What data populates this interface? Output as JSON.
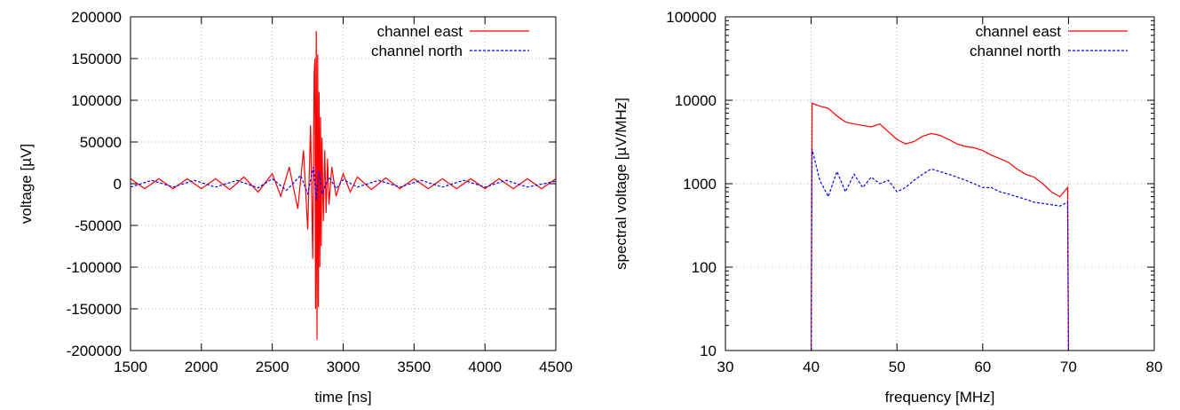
{
  "chart_data": [
    {
      "type": "line",
      "xlabel": "time [ns]",
      "ylabel": "voltage [µV]",
      "xlim": [
        1500,
        4500
      ],
      "ylim": [
        -200000,
        200000
      ],
      "x_ticks": [
        "1500",
        "2000",
        "2500",
        "3000",
        "3500",
        "4000",
        "4500"
      ],
      "x_tick_values": [
        1500,
        2000,
        2500,
        3000,
        3500,
        4000,
        4500
      ],
      "y_ticks": [
        "-200000",
        "-150000",
        "-100000",
        "-50000",
        "0",
        "50000",
        "100000",
        "150000",
        "200000"
      ],
      "y_tick_values": [
        -200000,
        -150000,
        -100000,
        -50000,
        0,
        50000,
        100000,
        150000,
        200000
      ],
      "y_scale": "linear",
      "grid": true,
      "legend": "top-right",
      "series": [
        {
          "name": "channel east",
          "color": "#ff0000",
          "style": "solid",
          "x": [
            1500,
            1600,
            1700,
            1800,
            1900,
            2000,
            2100,
            2200,
            2300,
            2400,
            2500,
            2560,
            2620,
            2680,
            2720,
            2750,
            2770,
            2785,
            2795,
            2800,
            2805,
            2810,
            2815,
            2820,
            2825,
            2830,
            2835,
            2840,
            2845,
            2850,
            2860,
            2870,
            2880,
            2890,
            2900,
            2920,
            2950,
            3000,
            3050,
            3100,
            3200,
            3300,
            3400,
            3500,
            3600,
            3700,
            3800,
            3900,
            4000,
            4100,
            4200,
            4300,
            4400,
            4500
          ],
          "values": [
            6000,
            -6000,
            6000,
            -6000,
            6000,
            -6000,
            6000,
            -7000,
            8000,
            -10000,
            12000,
            -15000,
            20000,
            -30000,
            40000,
            -55000,
            70000,
            -90000,
            130000,
            150000,
            -150000,
            183000,
            -187000,
            155000,
            -148000,
            110000,
            -100000,
            80000,
            -75000,
            55000,
            -45000,
            40000,
            -35000,
            30000,
            -25000,
            20000,
            -15000,
            12000,
            -10000,
            8000,
            -7000,
            7000,
            -6000,
            6000,
            -6000,
            6000,
            -6000,
            6000,
            -6000,
            6000,
            -6000,
            6000,
            -6000,
            6000
          ]
        },
        {
          "name": "channel north",
          "color": "#0000ff",
          "style": "dashed",
          "x": [
            1500,
            1650,
            1800,
            1950,
            2100,
            2250,
            2400,
            2500,
            2600,
            2700,
            2750,
            2790,
            2810,
            2830,
            2850,
            2900,
            2950,
            3000,
            3100,
            3250,
            3400,
            3550,
            3700,
            3850,
            4000,
            4150,
            4300,
            4500
          ],
          "values": [
            -4000,
            4000,
            -4000,
            4000,
            -4000,
            4000,
            -5000,
            6000,
            -8000,
            10000,
            -12000,
            20000,
            -20000,
            15000,
            -12000,
            8000,
            -6000,
            5000,
            -4000,
            4000,
            -4000,
            4000,
            -4000,
            4000,
            -4000,
            4000,
            -4000,
            3000
          ]
        }
      ]
    },
    {
      "type": "line",
      "xlabel": "frequency [MHz]",
      "ylabel": "spectral voltage [µV/MHz]",
      "xlim": [
        30,
        80
      ],
      "ylim": [
        10,
        100000
      ],
      "x_ticks": [
        "30",
        "40",
        "50",
        "60",
        "70",
        "80"
      ],
      "x_tick_values": [
        30,
        40,
        50,
        60,
        70,
        80
      ],
      "y_ticks": [
        "10",
        "100",
        "1000",
        "10000",
        "100000"
      ],
      "y_tick_values": [
        10,
        100,
        1000,
        10000,
        100000
      ],
      "y_scale": "log",
      "grid": true,
      "legend": "top-right",
      "series": [
        {
          "name": "channel east",
          "color": "#ff0000",
          "style": "solid",
          "x": [
            40,
            40.1,
            41,
            42,
            43,
            44,
            45,
            46,
            47,
            48,
            49,
            50,
            51,
            52,
            53,
            54,
            55,
            56,
            57,
            58,
            59,
            60,
            61,
            62,
            63,
            64,
            65,
            66,
            67,
            68,
            69,
            69.9,
            70
          ],
          "values": [
            10,
            9200,
            8500,
            8000,
            6500,
            5500,
            5200,
            5000,
            4800,
            5200,
            4200,
            3400,
            3000,
            3200,
            3700,
            4000,
            3800,
            3400,
            3000,
            2800,
            2700,
            2500,
            2200,
            2000,
            1800,
            1500,
            1300,
            1200,
            1000,
            800,
            700,
            900,
            10
          ]
        },
        {
          "name": "channel north",
          "color": "#0000ff",
          "style": "dashed",
          "x": [
            40,
            40.1,
            41,
            42,
            43,
            44,
            45,
            46,
            47,
            48,
            49,
            50,
            51,
            52,
            53,
            54,
            55,
            56,
            57,
            58,
            59,
            60,
            61,
            62,
            63,
            64,
            65,
            66,
            67,
            68,
            69,
            69.9,
            70
          ],
          "values": [
            10,
            2600,
            1100,
            700,
            1400,
            800,
            1300,
            900,
            1200,
            1000,
            1100,
            800,
            900,
            1100,
            1300,
            1500,
            1400,
            1300,
            1200,
            1100,
            1000,
            900,
            900,
            800,
            750,
            700,
            650,
            600,
            580,
            560,
            540,
            600,
            10
          ]
        }
      ]
    }
  ]
}
